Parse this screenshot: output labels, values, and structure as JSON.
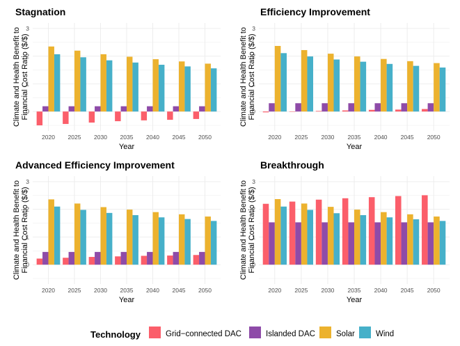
{
  "chart_data": [
    {
      "type": "bar",
      "title": "Stagnation",
      "xlabel": "Year",
      "ylabel": "Climate and Health Benefit to Financial Cost Ratio ($/$)",
      "ylim": [
        -0.7,
        3.2
      ],
      "yticks": [
        "0",
        "1",
        "2",
        "3"
      ],
      "categories": [
        "2020",
        "2025",
        "2030",
        "2035",
        "2040",
        "2045",
        "2050"
      ],
      "grid": true,
      "series": [
        {
          "name": "Grid−connected DAC",
          "values": [
            -0.5,
            -0.45,
            -0.4,
            -0.35,
            -0.32,
            -0.3,
            -0.27
          ]
        },
        {
          "name": "Islanded DAC",
          "values": [
            0.19,
            0.19,
            0.19,
            0.19,
            0.19,
            0.19,
            0.19
          ]
        },
        {
          "name": "Solar",
          "values": [
            2.35,
            2.2,
            2.07,
            1.98,
            1.89,
            1.81,
            1.73
          ]
        },
        {
          "name": "Wind",
          "values": [
            2.07,
            1.96,
            1.85,
            1.77,
            1.69,
            1.63,
            1.56
          ]
        }
      ]
    },
    {
      "type": "bar",
      "title": "Efficiency Improvement",
      "xlabel": "Year",
      "ylabel": "Climate and Health Benefit to Financial Cost Ratio ($/$)",
      "ylim": [
        -0.7,
        3.2
      ],
      "yticks": [
        "0",
        "1",
        "2",
        "3"
      ],
      "categories": [
        "2020",
        "2025",
        "2030",
        "2035",
        "2040",
        "2045",
        "2050"
      ],
      "grid": true,
      "series": [
        {
          "name": "Grid−connected DAC",
          "values": [
            -0.03,
            0.0,
            0.02,
            0.04,
            0.06,
            0.07,
            0.09
          ]
        },
        {
          "name": "Islanded DAC",
          "values": [
            0.3,
            0.3,
            0.3,
            0.3,
            0.3,
            0.3,
            0.3
          ]
        },
        {
          "name": "Solar",
          "values": [
            2.37,
            2.22,
            2.09,
            1.99,
            1.9,
            1.82,
            1.75
          ]
        },
        {
          "name": "Wind",
          "values": [
            2.11,
            1.99,
            1.88,
            1.8,
            1.72,
            1.65,
            1.59
          ]
        }
      ]
    },
    {
      "type": "bar",
      "title": "Advanced Efficiency Improvement",
      "xlabel": "Year",
      "ylabel": "Climate and Health Benefit to Financial Cost Ratio ($/$)",
      "ylim": [
        -0.7,
        3.2
      ],
      "yticks": [
        "0",
        "1",
        "2",
        "3"
      ],
      "categories": [
        "2020",
        "2025",
        "2030",
        "2035",
        "2040",
        "2045",
        "2050"
      ],
      "grid": true,
      "series": [
        {
          "name": "Grid−connected DAC",
          "values": [
            0.22,
            0.25,
            0.28,
            0.3,
            0.32,
            0.33,
            0.35
          ]
        },
        {
          "name": "Islanded DAC",
          "values": [
            0.46,
            0.46,
            0.46,
            0.46,
            0.46,
            0.46,
            0.46
          ]
        },
        {
          "name": "Solar",
          "values": [
            2.36,
            2.21,
            2.08,
            1.99,
            1.9,
            1.82,
            1.74
          ]
        },
        {
          "name": "Wind",
          "values": [
            2.1,
            1.98,
            1.87,
            1.79,
            1.71,
            1.65,
            1.58
          ]
        }
      ]
    },
    {
      "type": "bar",
      "title": "Breakthrough",
      "xlabel": "Year",
      "ylabel": "Climate and Health Benefit to Financial Cost Ratio ($/$)",
      "ylim": [
        -0.7,
        3.2
      ],
      "yticks": [
        "0",
        "1",
        "2",
        "3"
      ],
      "categories": [
        "2020",
        "2025",
        "2030",
        "2035",
        "2040",
        "2045",
        "2050"
      ],
      "grid": true,
      "series": [
        {
          "name": "Grid−connected DAC",
          "values": [
            2.2,
            2.28,
            2.35,
            2.4,
            2.44,
            2.48,
            2.51
          ]
        },
        {
          "name": "Islanded DAC",
          "values": [
            1.53,
            1.53,
            1.53,
            1.53,
            1.53,
            1.53,
            1.53
          ]
        },
        {
          "name": "Solar",
          "values": [
            2.37,
            2.21,
            2.09,
            1.99,
            1.9,
            1.82,
            1.74
          ]
        },
        {
          "name": "Wind",
          "values": [
            2.1,
            1.98,
            1.86,
            1.79,
            1.71,
            1.64,
            1.58
          ]
        }
      ]
    }
  ],
  "legend": {
    "title": "Technology",
    "position": "bottom",
    "items": [
      {
        "label": "Grid−connected DAC",
        "color": "#FB5E6A"
      },
      {
        "label": "Islanded DAC",
        "color": "#8E4BA8"
      },
      {
        "label": "Solar",
        "color": "#ECB22E"
      },
      {
        "label": "Wind",
        "color": "#46B0C9"
      }
    ]
  },
  "ylabel_lines": [
    "Climate and Health Benefit to",
    "Financial Cost Ratio ($/$)"
  ],
  "colors": {
    "grid": "#e5e5e5",
    "tick_text": "#4d4d4d",
    "background": "#ffffff"
  }
}
